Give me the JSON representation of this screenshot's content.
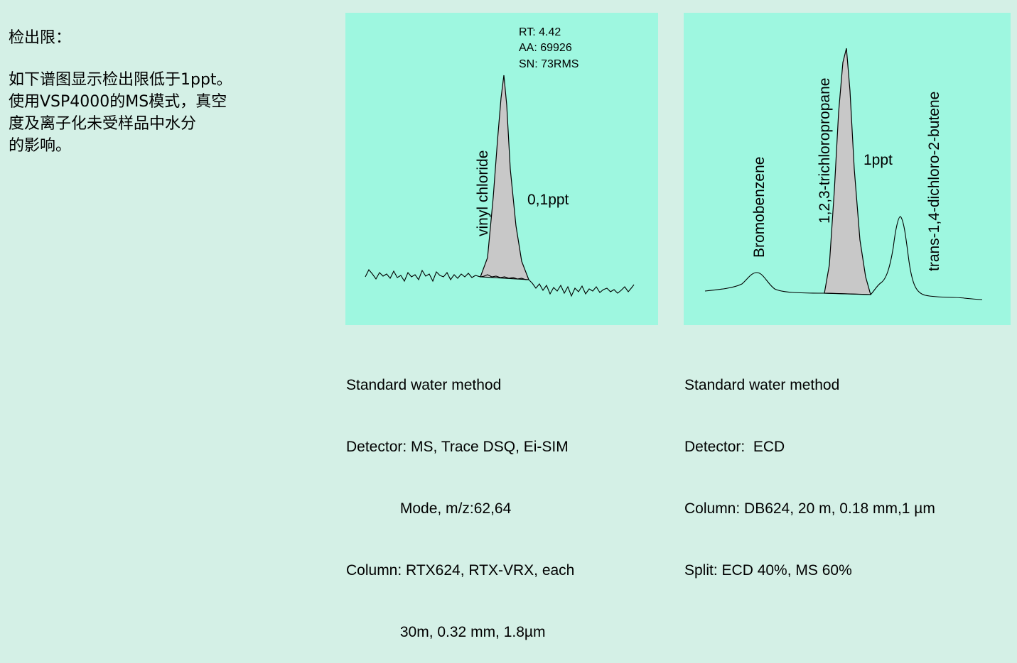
{
  "intro": {
    "heading": "检出限：",
    "body_lines": [
      "如下谱图显示检出限低于1ppt。",
      "使用VSP4000的MS模式，真空",
      "度及离子化未受样品中水分",
      "的影响。"
    ]
  },
  "left_panel": {
    "rt_label": "RT: 4.42",
    "aa_label": "AA: 69926",
    "sn_label": "SN: 73RMS",
    "peak_name": "vinyl chloride",
    "concentration": "0,1ppt",
    "caption_lines": [
      "Standard water method",
      "Detector: MS, Trace DSQ, Ei-SIM",
      "             Mode, m/z:62,64",
      "Column: RTX624, RTX-VRX, each",
      "             30m, 0.32 mm, 1.8µm"
    ]
  },
  "right_panel": {
    "peak1_name": "Bromobenzene",
    "peak2_name": "1,2,3-trichloropropane",
    "peak3_name": "trans-1,4-dichloro-2-butene",
    "concentration": "1ppt",
    "caption_lines": [
      "Standard water method",
      "Detector:  ECD",
      "Column: DB624, 20 m, 0.18 mm,1 µm",
      "Split: ECD 40%, MS 60%"
    ]
  },
  "colors": {
    "page_background": "#d4f0e6",
    "panel_background": "#9ef7e0",
    "peak_fill": "#c8c8c8"
  }
}
